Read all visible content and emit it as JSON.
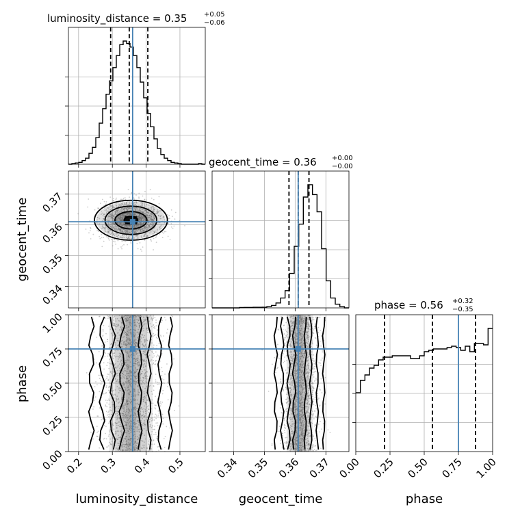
{
  "chart_data": {
    "type": "corner",
    "parameters": [
      "luminosity_distance",
      "geocent_time",
      "phase"
    ],
    "truths": {
      "luminosity_distance": 0.36,
      "geocent_time": 0.361,
      "phase": 0.75
    },
    "titles": [
      {
        "param": "luminosity_distance",
        "median": "0.35",
        "plus": "+0.05",
        "minus": "−0.06"
      },
      {
        "param": "geocent_time",
        "median": "0.36",
        "plus": "+0.00",
        "minus": "−0.00"
      },
      {
        "param": "phase",
        "median": "0.56",
        "plus": "+0.32",
        "minus": "−0.35"
      }
    ],
    "axes": {
      "luminosity_distance": {
        "range": [
          0.17,
          0.575
        ],
        "ticks": [
          0.2,
          0.3,
          0.4,
          0.5
        ],
        "tick_labels": [
          "0.2",
          "0.3",
          "0.4",
          "0.5"
        ]
      },
      "geocent_time": {
        "range": [
          0.333,
          0.3775
        ],
        "ticks": [
          0.34,
          0.35,
          0.36,
          0.37
        ],
        "tick_labels": [
          "0.34",
          "0.35",
          "0.36",
          "0.37"
        ]
      },
      "phase": {
        "range": [
          0.0,
          1.0
        ],
        "ticks": [
          0.0,
          0.25,
          0.5,
          0.75,
          1.0
        ],
        "tick_labels": [
          "0.00",
          "0.25",
          "0.50",
          "0.75",
          "1.00"
        ]
      }
    },
    "histograms": {
      "luminosity_distance": {
        "quantiles": [
          0.295,
          0.35,
          0.405
        ],
        "bins": [
          0.17,
          0.575
        ],
        "counts": [
          0,
          0.5,
          1,
          1.5,
          3,
          5,
          9,
          14,
          22,
          34,
          46,
          58,
          69,
          80,
          90,
          99,
          102,
          100,
          97,
          90,
          80,
          68,
          55,
          42,
          31,
          21,
          13,
          8,
          5,
          3,
          1.5,
          1,
          0.5,
          0,
          0,
          0,
          0,
          0,
          0.5,
          0
        ]
      },
      "geocent_time": {
        "quantiles": [
          0.358,
          0.361,
          0.3645
        ],
        "bins": [
          0.333,
          0.3775
        ],
        "counts": [
          0,
          0,
          0,
          0,
          0,
          0,
          0.3,
          0.4,
          0.4,
          0.5,
          0.5,
          0.6,
          1,
          2,
          4,
          8,
          14,
          28,
          50,
          68,
          90,
          100,
          92,
          78,
          48,
          22,
          8,
          3,
          1,
          0
        ]
      },
      "phase": {
        "quantiles": [
          0.21,
          0.56,
          0.875
        ],
        "bins": [
          0.0,
          1.0
        ],
        "counts": [
          43,
          52,
          56,
          61,
          63,
          67,
          69,
          69,
          70,
          70,
          70,
          70,
          68,
          68,
          70,
          73,
          74,
          75,
          75,
          75,
          76,
          77,
          76,
          74,
          77,
          73,
          79,
          79,
          78,
          90
        ]
      }
    },
    "grid": true
  },
  "labels": {
    "x_luminosity_distance": "luminosity_distance",
    "x_geocent_time": "geocent_time",
    "x_phase": "phase",
    "y_geocent_time": "geocent_time",
    "y_phase": "phase"
  },
  "colors": {
    "truth": "#4682b4",
    "contour": "#000000",
    "density": "#000000"
  }
}
